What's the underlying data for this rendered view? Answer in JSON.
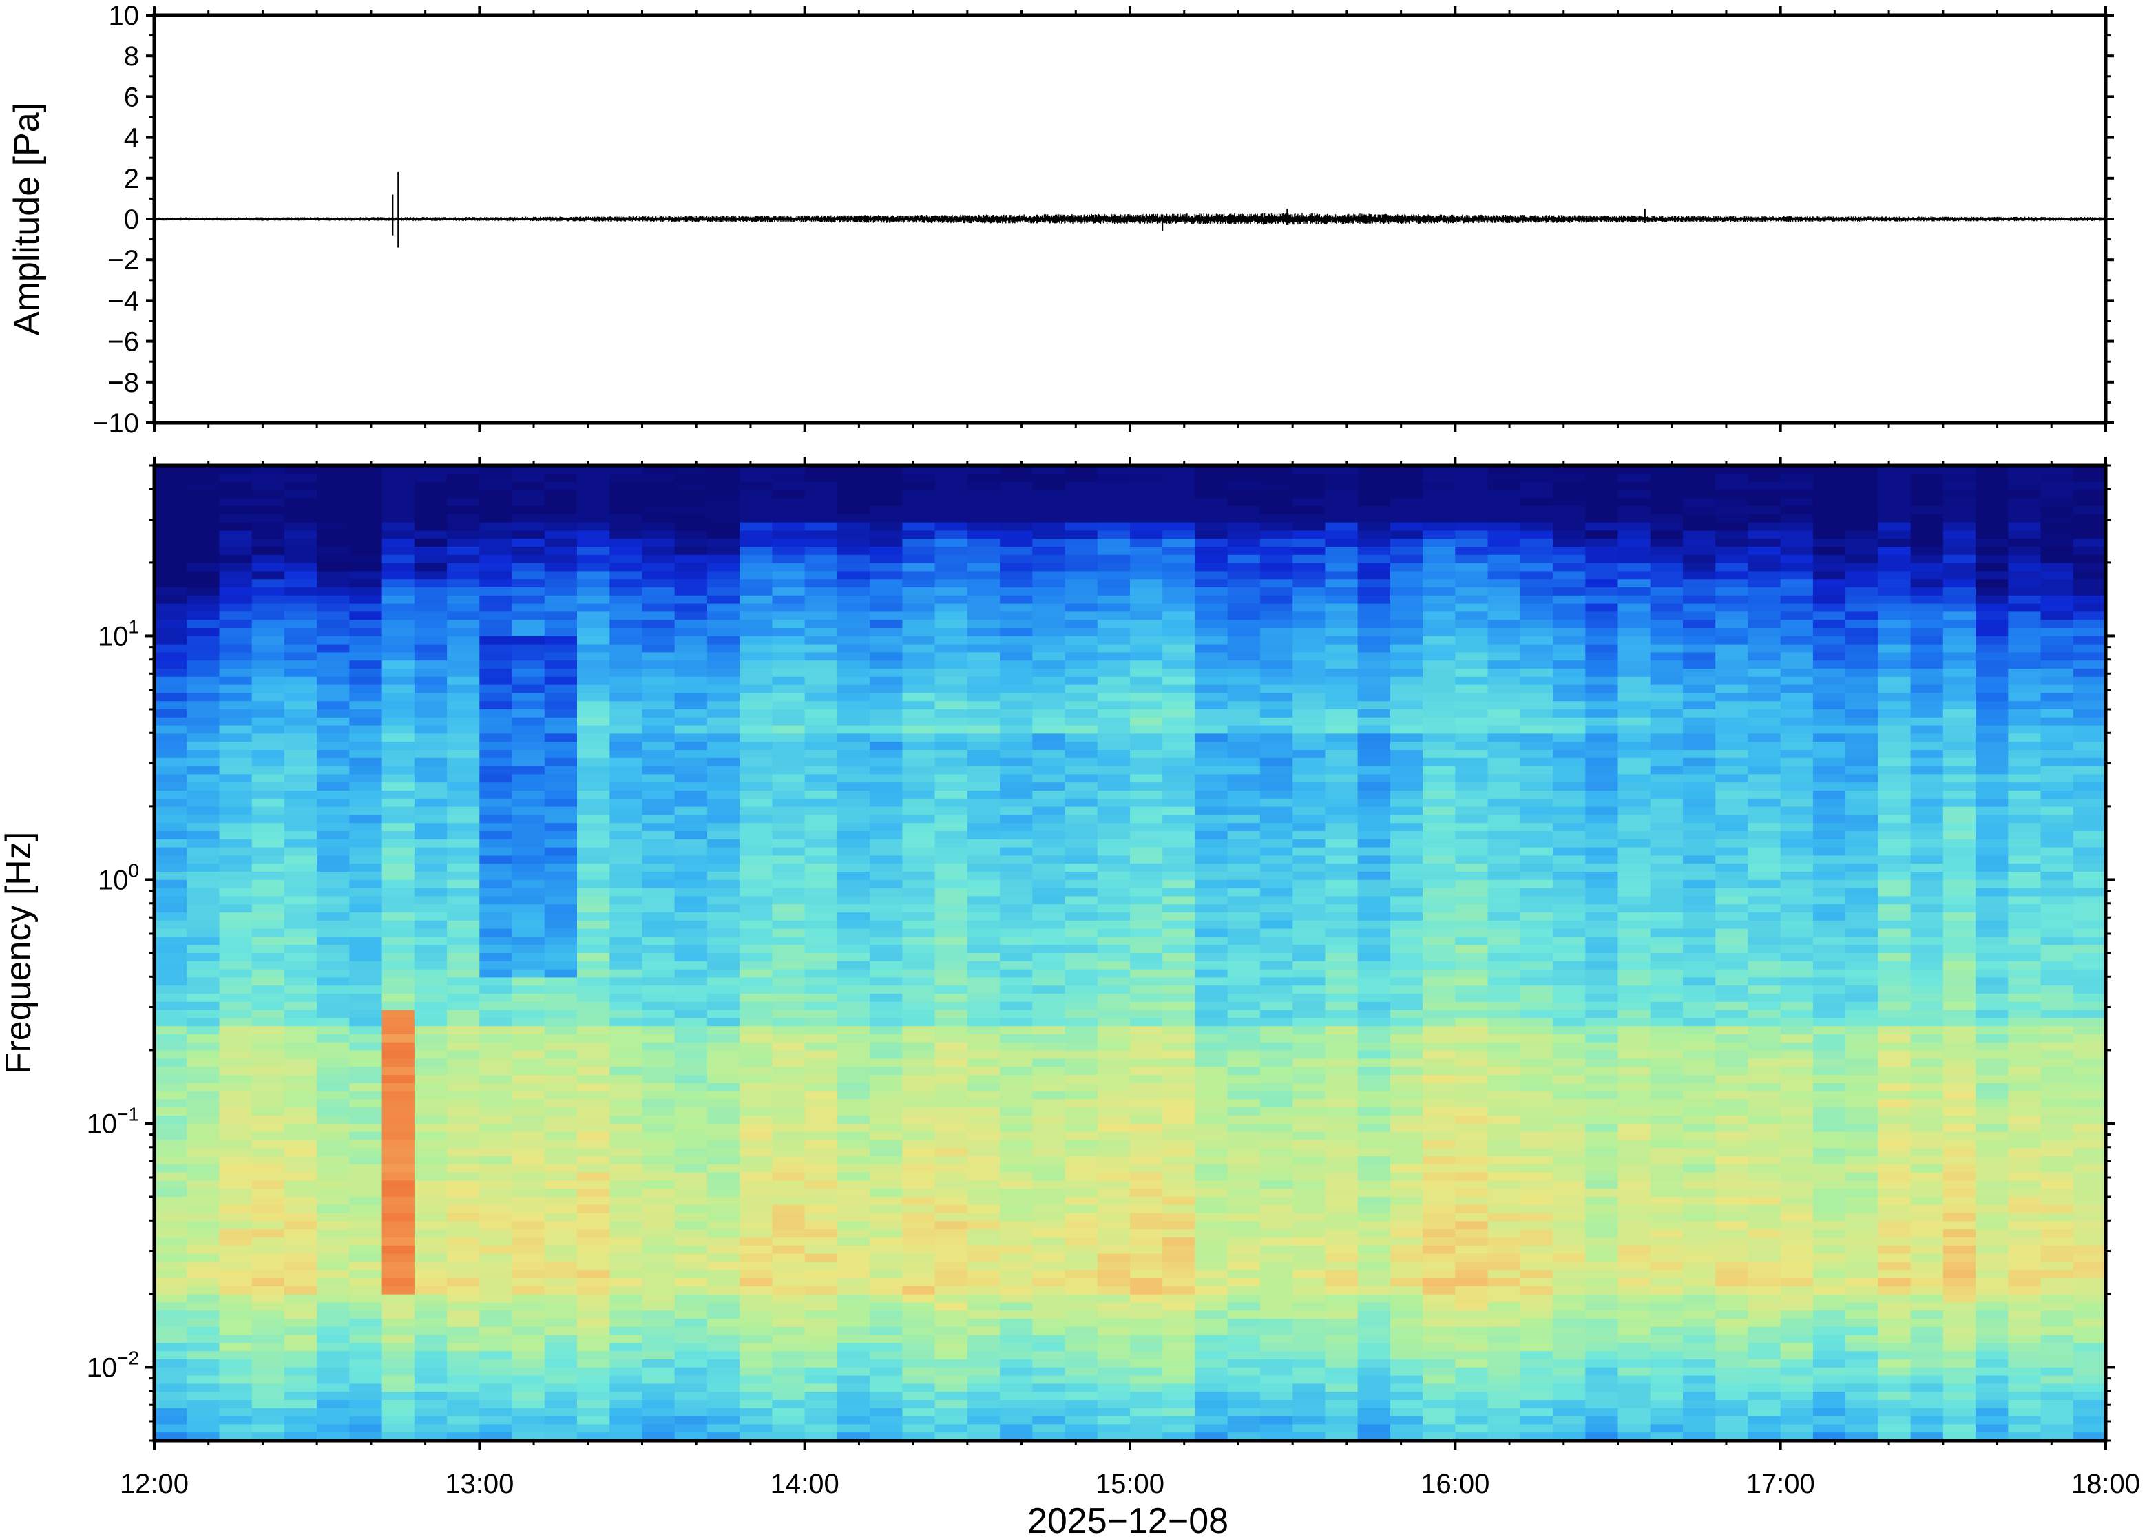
{
  "chart_data": [
    {
      "type": "line",
      "panel": "waveform",
      "ylabel": "Amplitude [Pa]",
      "ylim": [
        -10,
        10
      ],
      "yticks": [
        10,
        8,
        6,
        4,
        2,
        0,
        -2,
        -4,
        -6,
        -8,
        -10
      ],
      "ytick_labels": [
        "10",
        "8",
        "6",
        "4",
        "2",
        "0",
        "−2",
        "−4",
        "−6",
        "−8",
        "−10"
      ],
      "xlim": [
        "12:00",
        "18:00"
      ],
      "grid": false,
      "line_color": "#000000",
      "baseline": 0.0,
      "events": [
        {
          "time": "12:45",
          "min": -1.4,
          "max": 2.3
        },
        {
          "time": "12:44",
          "min": -0.8,
          "max": 1.2
        },
        {
          "time": "15:06",
          "min": -0.6,
          "max": 0.2
        },
        {
          "time": "15:29",
          "min": -0.3,
          "max": 0.5
        },
        {
          "time": "16:35",
          "min": -0.2,
          "max": 0.5
        }
      ],
      "noise_envelope": [
        {
          "x": "12:00",
          "amp": 0.08
        },
        {
          "x": "13:00",
          "amp": 0.1
        },
        {
          "x": "14:00",
          "amp": 0.18
        },
        {
          "x": "15:00",
          "amp": 0.25
        },
        {
          "x": "15:30",
          "amp": 0.3
        },
        {
          "x": "16:00",
          "amp": 0.22
        },
        {
          "x": "17:00",
          "amp": 0.14
        },
        {
          "x": "18:00",
          "amp": 0.1
        }
      ]
    },
    {
      "type": "heatmap",
      "panel": "spectrogram",
      "ylabel": "Frequency [Hz]",
      "yscale": "log",
      "ylim": [
        0.005,
        50
      ],
      "yticks": [
        {
          "value": 10,
          "base": "10",
          "exp": "1"
        },
        {
          "value": 1,
          "base": "10",
          "exp": "0"
        },
        {
          "value": 0.1,
          "base": "10",
          "exp": "−1"
        },
        {
          "value": 0.01,
          "base": "10",
          "exp": "−2"
        }
      ],
      "xlabel": "2025−12−08",
      "xticks": [
        "12:00",
        "13:00",
        "14:00",
        "15:00",
        "16:00",
        "17:00",
        "18:00"
      ],
      "xlim": [
        "12:00",
        "18:00"
      ],
      "colormap": [
        "#0a0a78",
        "#0d2ad6",
        "#1e7df0",
        "#3cbaf0",
        "#6ee6dc",
        "#b4f09b",
        "#ebe682",
        "#f5b464",
        "#f0783c",
        "#dc2814"
      ],
      "columns_per_hour": 10,
      "features": [
        {
          "description": "strong broadband event",
          "time": "12:45",
          "freq_range": [
            0.02,
            0.3
          ],
          "level": 0.85
        },
        {
          "description": "quiet band at upper frequencies",
          "time_range": [
            "13:00",
            "13:20"
          ],
          "freq_range": [
            0.4,
            10
          ],
          "level": 0.2
        },
        {
          "description": "low-frequency energy band",
          "time_range": [
            "12:00",
            "18:00"
          ],
          "freq_range": [
            0.02,
            0.2
          ],
          "level": 0.65
        }
      ]
    }
  ]
}
